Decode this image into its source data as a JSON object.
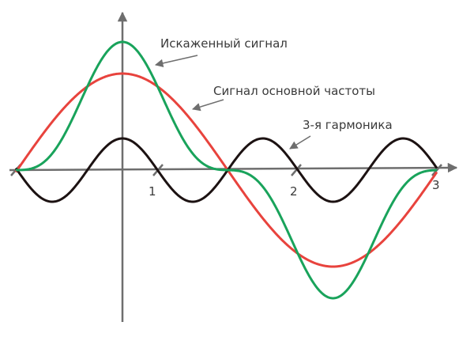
{
  "annotations": {
    "distorted": "Искаженный сигнал",
    "fundamental": "Сигнал основной частоты",
    "harmonic": "3-я гармоника"
  },
  "axis": {
    "tick_labels": [
      "1",
      "2",
      "3"
    ]
  }
}
